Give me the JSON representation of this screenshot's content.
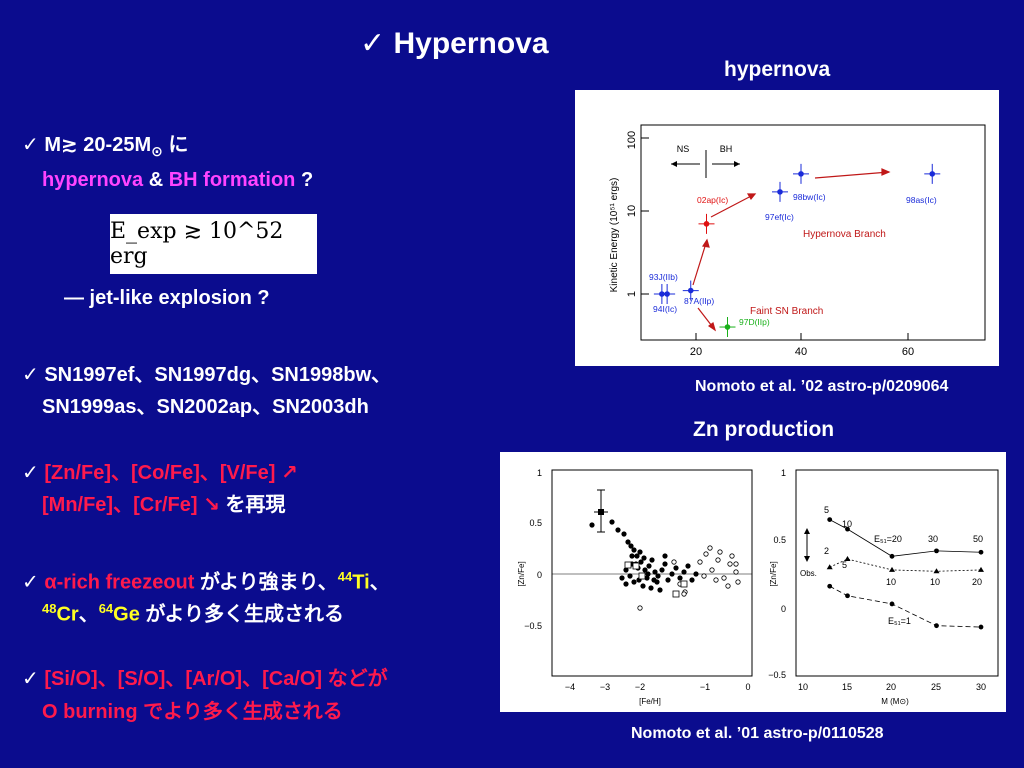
{
  "title": "✓ Hypernova",
  "fig1": {
    "caption": "hypernova",
    "ref": "Nomoto et al. ’02 astro-p/0209064",
    "ylabel": "Kinetic Energy (10⁵¹ ergs)",
    "yticks": [
      "100",
      "10",
      "1"
    ],
    "xticks": [
      "20",
      "40",
      "60"
    ],
    "ns": "NS",
    "bh": "BH",
    "hypernova_branch": "Hypernova Branch",
    "faint_branch": "Faint SN Branch",
    "points": [
      {
        "label": "98bw(Ic)",
        "x": 40,
        "y": 28,
        "color": "#1a2bd9"
      },
      {
        "label": "97ef(Ic)",
        "x": 36,
        "y": 17,
        "color": "#1a2bd9"
      },
      {
        "label": "98as(Ic)",
        "x": 65,
        "y": 28,
        "color": "#1a2bd9"
      },
      {
        "label": "02ap(Ic)",
        "x": 22,
        "y": 7,
        "color": "#e01010"
      },
      {
        "label": "93J(IIb)",
        "x": 13.5,
        "y": 1.0,
        "color": "#1a2bd9"
      },
      {
        "label": "94I(Ic)",
        "x": 14.5,
        "y": 1.0,
        "color": "#1a2bd9"
      },
      {
        "label": "87A(IIp)",
        "x": 19,
        "y": 1.1,
        "color": "#1a2bd9"
      },
      {
        "label": "97D(IIp)",
        "x": 26,
        "y": 0.4,
        "color": "#19b019"
      }
    ]
  },
  "fig2": {
    "caption": "Zn production",
    "ref": "Nomoto et al. ’01 astro-p/0110528",
    "left_ylabel": "[Zn/Fe]",
    "left_xlabel": "[Fe/H]",
    "left_yticks": [
      "1",
      "0.5",
      "0",
      "−0.5"
    ],
    "left_xticks": [
      "−4",
      "−3",
      "−2",
      "−1",
      "0"
    ],
    "right_ylabel": "[Zn/Fe]",
    "right_xlabel": "M (M⊙)",
    "right_yticks": [
      "1",
      "0.5",
      "0",
      "−0.5"
    ],
    "right_xticks": [
      "10",
      "15",
      "20",
      "25",
      "30"
    ],
    "obs": "Obs.",
    "e20": "E₅₁=20",
    "e1": "E₅₁=1",
    "line_labels": {
      "a": "5",
      "b": "10",
      "c": "30",
      "d": "50",
      "e": "2",
      "f": "5",
      "g": "10",
      "h": "10",
      "i": "20"
    },
    "series": [
      {
        "name": "E51=20",
        "x": [
          13,
          15,
          20,
          25,
          30
        ],
        "y": [
          0.65,
          0.58,
          0.38,
          0.42,
          0.41
        ]
      },
      {
        "name": "mid",
        "x": [
          13,
          15,
          20,
          25,
          30
        ],
        "y": [
          0.3,
          0.36,
          0.28,
          0.27,
          0.28
        ]
      },
      {
        "name": "E51=1",
        "x": [
          13,
          15,
          20,
          25,
          30
        ],
        "y": [
          0.16,
          0.09,
          0.03,
          -0.13,
          -0.14
        ]
      }
    ]
  },
  "formula": "E_exp ≳ 10^52 erg",
  "bullets": {
    "b1_line1_prefix": "✓ M",
    "b1_line1_sym": "≳",
    "b1_line1_mid": " 20-25M",
    "b1_line1_sun": "⊙",
    "b1_line1_suffix": " に",
    "b1_line2_a": "hypernova",
    "b1_line2_b": " & ",
    "b1_line2_c": "BH formation",
    "b1_line2_d": " ?",
    "b1_sub": "— jet-like explosion ?",
    "b2_line1": "✓ SN1997ef、SN1997dg、SN1998bw、",
    "b2_line2": "SN1999as、SN2002ap、SN2003dh",
    "b3_line1_check": "✓ ",
    "b3_line1": "[Zn/Fe]、[Co/Fe]、[V/Fe] ↗",
    "b3_line2": "[Mn/Fe]、[Cr/Fe] ↘",
    "b3_line2_suffix": " を再現",
    "b4_check": "✓ ",
    "b4_alpha": "α-rich freezeout",
    "b4_mid": " がより強まり、",
    "b4_ti_sup": "44",
    "b4_ti": "Ti",
    "b4_ti_tail": "、",
    "b4_cr_sup": "48",
    "b4_cr": "Cr",
    "b4_sep": "、",
    "b4_ge_sup": "64",
    "b4_ge": "Ge",
    "b4_tail": " がより多く生成される",
    "b5_check": "✓ ",
    "b5_line1": "[Si/O]、[S/O]、[Ar/O]、[Ca/O] などが",
    "b5_line2": "O burning でより多く生成される"
  }
}
